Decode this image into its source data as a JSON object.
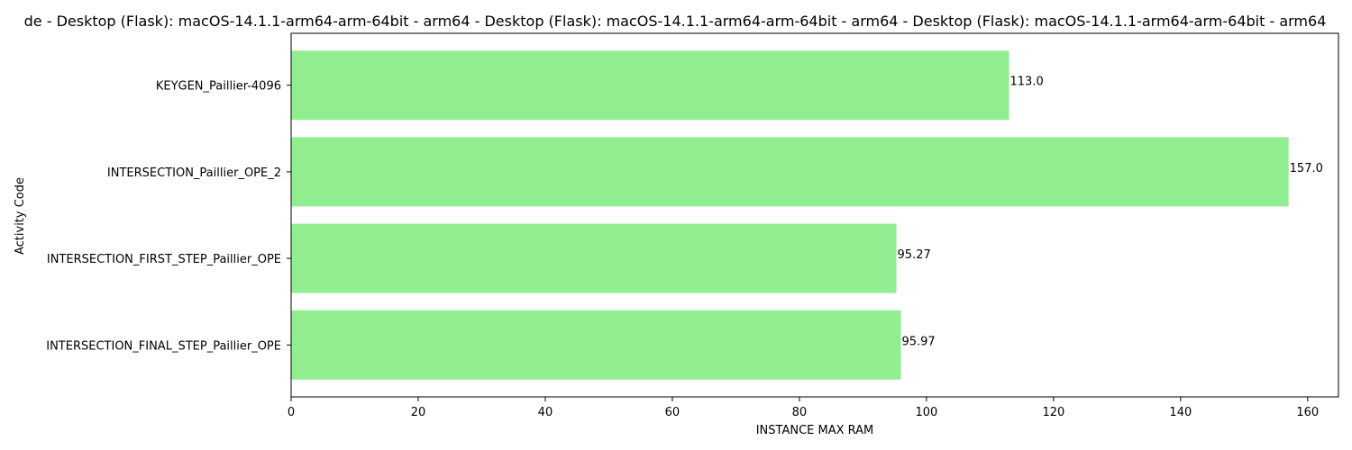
{
  "chart_data": {
    "type": "bar",
    "orientation": "horizontal",
    "title": "de - Desktop (Flask): macOS-14.1.1-arm64-arm-64bit - arm64 - Desktop (Flask): macOS-14.1.1-arm64-arm-64bit - arm64 - Desktop (Flask): macOS-14.1.1-arm64-arm-64bit - arm64",
    "xlabel": "INSTANCE MAX RAM",
    "ylabel": "Activity Code",
    "categories": [
      "INTERSECTION_FINAL_STEP_Paillier_OPE",
      "INTERSECTION_FIRST_STEP_Paillier_OPE",
      "INTERSECTION_Paillier_OPE_2",
      "KEYGEN_Paillier-4096"
    ],
    "values": [
      95.97,
      95.27,
      157.0,
      113.0
    ],
    "value_labels": [
      "95.97",
      "95.27",
      "157.0",
      "113.0"
    ],
    "xlim": [
      0,
      164.85
    ],
    "xticks": [
      0,
      20,
      40,
      60,
      80,
      100,
      120,
      140,
      160
    ],
    "grid": false,
    "bar_color": "#90ee90"
  }
}
